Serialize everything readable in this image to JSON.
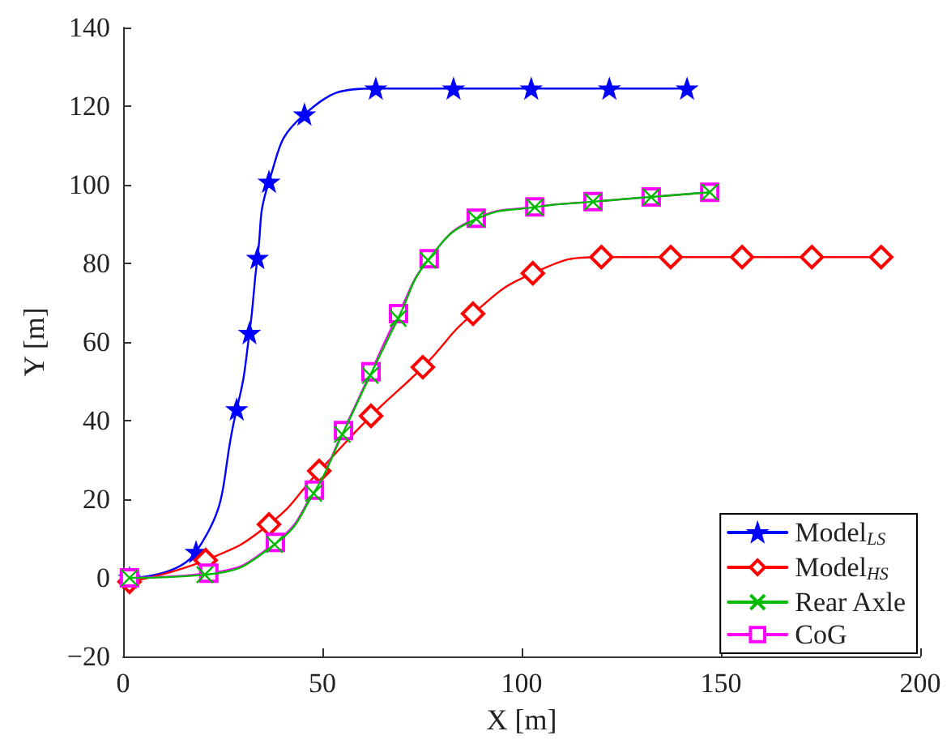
{
  "chart_data": {
    "type": "line",
    "xlabel": "X [m]",
    "ylabel": "Y [m]",
    "xlim": [
      0,
      200
    ],
    "xticks": [
      0,
      50,
      100,
      150,
      200
    ],
    "ylim": [
      -20,
      140
    ],
    "yticks": [
      {
        "value": -20,
        "label": "−20"
      },
      0,
      20,
      40,
      60,
      80,
      100,
      120,
      140
    ],
    "grid": false,
    "legend": "bottom right",
    "line_style": "solid",
    "series": [
      {
        "name": "Model$_{LS}$",
        "color": "#0000ff",
        "marker": "star",
        "x": [
          1.6,
          18.3,
          28.5,
          31.7,
          33.7,
          36.6,
          45.5,
          63.4,
          82.9,
          102.4,
          122,
          141.5
        ],
        "values": [
          0,
          6.6,
          42.9,
          62.3,
          81.4,
          100.8,
          117.9,
          124.5,
          124.5,
          124.5,
          124.5,
          124.5
        ]
      },
      {
        "name": "Model$_{HS}$",
        "color": "#ff0000",
        "marker": "diamond",
        "x": [
          1.6,
          20.7,
          36.6,
          49.2,
          62.2,
          75.2,
          87.8,
          102.8,
          120,
          137.4,
          155.3,
          172.8,
          190.2
        ],
        "values": [
          -1,
          4.5,
          13.6,
          27.2,
          41.2,
          53.6,
          67.2,
          77.5,
          81.6,
          81.6,
          81.6,
          81.6,
          81.6
        ]
      },
      {
        "name": "Rear Axle",
        "color": "#00bb00",
        "marker": "cross",
        "x": [
          1.6,
          20.5,
          38,
          47.8,
          55,
          62,
          69,
          76.5,
          88.6,
          103.3,
          117.9,
          132.5,
          147.2
        ],
        "values": [
          0,
          0.8,
          8.5,
          21.5,
          36.5,
          51.5,
          66,
          80.8,
          91.3,
          94.3,
          95.7,
          96.9,
          98.1
        ]
      },
      {
        "name": "CoG",
        "color": "#ff00ff",
        "marker": "square",
        "x": [
          1.6,
          21.5,
          38.2,
          48,
          55.3,
          62.2,
          69.1,
          76.8,
          88.6,
          103.3,
          117.9,
          132.5,
          147.2
        ],
        "values": [
          0,
          1.2,
          9,
          22.3,
          37.5,
          52.4,
          67.2,
          81.2,
          91.5,
          94.4,
          95.7,
          96.9,
          98.1
        ]
      }
    ]
  }
}
